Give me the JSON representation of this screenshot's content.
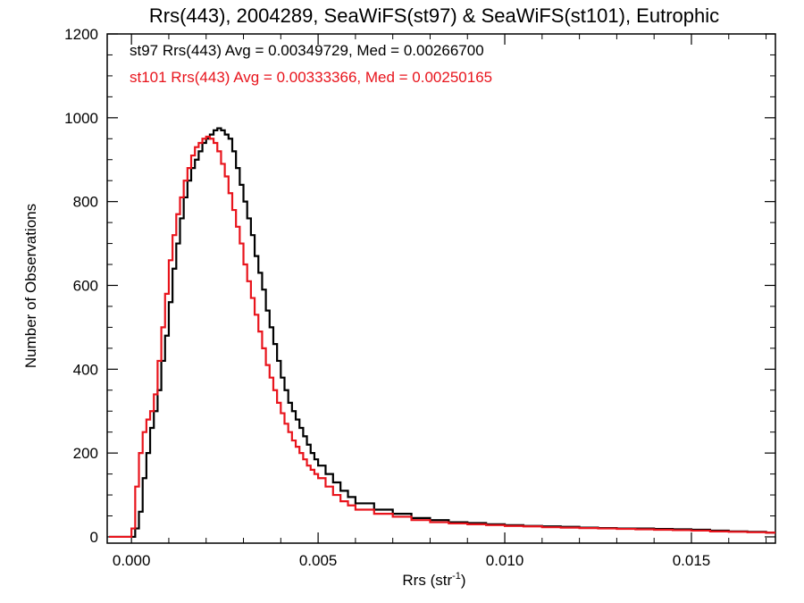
{
  "chart_data": {
    "type": "line",
    "style": "step-histogram",
    "title": "Rrs(443), 2004289, SeaWiFS(st97) & SeaWiFS(st101), Eutrophic",
    "xlabel_base": "Rrs (str",
    "xlabel_sup": "-1",
    "xlabel_tail": ")",
    "ylabel": "Number of Observations",
    "xlim": [
      -0.00065,
      0.01725
    ],
    "ylim": [
      -15,
      1200
    ],
    "xticks": [
      0.0,
      0.005,
      0.01,
      0.015
    ],
    "xtick_labels": [
      "0.000",
      "0.005",
      "0.010",
      "0.015"
    ],
    "yticks": [
      0,
      200,
      400,
      600,
      800,
      1000,
      1200
    ],
    "ytick_labels": [
      "0",
      "200",
      "400",
      "600",
      "800",
      "1000",
      "1200"
    ],
    "grid": false,
    "annotations": [
      {
        "text": "st97 Rrs(443) Avg = 0.00349729, Med = 0.00266700",
        "color": "#000000"
      },
      {
        "text": "st101 Rrs(443) Avg = 0.00333366, Med = 0.00250165",
        "color": "#e8141c"
      }
    ],
    "series": [
      {
        "color": "#000000",
        "x": [
          -0.0006,
          0.0,
          0.0001,
          0.0002,
          0.0003,
          0.0004,
          0.0005,
          0.0006,
          0.0007,
          0.0008,
          0.0009,
          0.001,
          0.0011,
          0.0012,
          0.0013,
          0.0014,
          0.0015,
          0.0016,
          0.0017,
          0.0018,
          0.0019,
          0.002,
          0.0021,
          0.0022,
          0.0023,
          0.0024,
          0.0025,
          0.0026,
          0.0027,
          0.0028,
          0.0029,
          0.003,
          0.0031,
          0.0032,
          0.0033,
          0.0034,
          0.0035,
          0.0036,
          0.0037,
          0.0038,
          0.0039,
          0.004,
          0.0041,
          0.0042,
          0.0043,
          0.0044,
          0.0045,
          0.0046,
          0.0047,
          0.0048,
          0.0049,
          0.005,
          0.0052,
          0.0054,
          0.0056,
          0.0058,
          0.006,
          0.0065,
          0.007,
          0.0075,
          0.008,
          0.0085,
          0.009,
          0.0095,
          0.01,
          0.0105,
          0.011,
          0.0115,
          0.012,
          0.0125,
          0.013,
          0.0135,
          0.014,
          0.0145,
          0.015,
          0.0155,
          0.016,
          0.0165,
          0.017
        ],
        "y": [
          0,
          0,
          20,
          60,
          140,
          200,
          260,
          300,
          350,
          420,
          480,
          560,
          640,
          700,
          760,
          810,
          850,
          880,
          900,
          920,
          940,
          950,
          960,
          970,
          975,
          970,
          960,
          950,
          920,
          880,
          840,
          800,
          760,
          720,
          670,
          630,
          590,
          540,
          500,
          460,
          420,
          380,
          350,
          320,
          300,
          280,
          260,
          240,
          220,
          200,
          185,
          170,
          150,
          130,
          110,
          95,
          80,
          65,
          55,
          45,
          40,
          35,
          33,
          30,
          28,
          26,
          25,
          24,
          22,
          21,
          20,
          20,
          19,
          18,
          17,
          15,
          13,
          12,
          10
        ]
      },
      {
        "color": "#e8141c",
        "x": [
          -0.0006,
          0.0,
          0.0001,
          0.0002,
          0.0003,
          0.0004,
          0.0005,
          0.0006,
          0.0007,
          0.0008,
          0.0009,
          0.001,
          0.0011,
          0.0012,
          0.0013,
          0.0014,
          0.0015,
          0.0016,
          0.0017,
          0.0018,
          0.0019,
          0.002,
          0.0021,
          0.0022,
          0.0023,
          0.0024,
          0.0025,
          0.0026,
          0.0027,
          0.0028,
          0.0029,
          0.003,
          0.0031,
          0.0032,
          0.0033,
          0.0034,
          0.0035,
          0.0036,
          0.0037,
          0.0038,
          0.0039,
          0.004,
          0.0041,
          0.0042,
          0.0043,
          0.0044,
          0.0045,
          0.0046,
          0.0047,
          0.0048,
          0.0049,
          0.005,
          0.0052,
          0.0054,
          0.0056,
          0.0058,
          0.006,
          0.0065,
          0.007,
          0.0075,
          0.008,
          0.0085,
          0.009,
          0.0095,
          0.01,
          0.0105,
          0.011,
          0.0115,
          0.012,
          0.0125,
          0.013,
          0.0135,
          0.014,
          0.0145,
          0.015,
          0.0155,
          0.016,
          0.0165,
          0.017
        ],
        "y": [
          0,
          20,
          120,
          200,
          250,
          280,
          300,
          340,
          420,
          500,
          580,
          660,
          720,
          770,
          810,
          850,
          880,
          910,
          930,
          940,
          950,
          955,
          950,
          940,
          920,
          890,
          860,
          820,
          780,
          740,
          700,
          650,
          610,
          570,
          530,
          490,
          450,
          410,
          380,
          350,
          320,
          295,
          270,
          250,
          230,
          215,
          200,
          185,
          170,
          160,
          150,
          140,
          120,
          100,
          85,
          75,
          65,
          55,
          48,
          40,
          35,
          32,
          30,
          28,
          26,
          25,
          23,
          22,
          21,
          20,
          19,
          18,
          17,
          16,
          15,
          13,
          12,
          11,
          10
        ]
      }
    ]
  }
}
